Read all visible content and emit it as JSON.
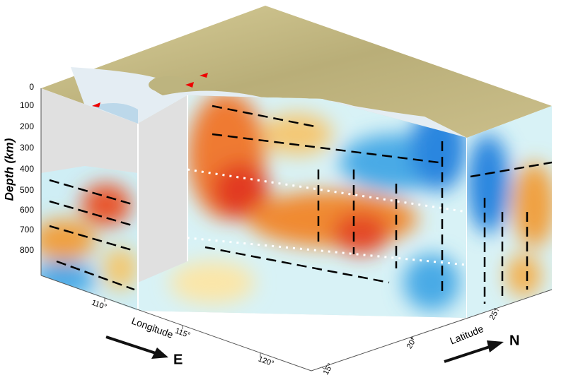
{
  "depth_axis": {
    "label": "Depth (km)",
    "ticks": [
      "0",
      "100",
      "200",
      "300",
      "400",
      "500",
      "600",
      "700",
      "800"
    ]
  },
  "longitude_axis": {
    "label": "Longitude",
    "ticks": [
      "110°",
      "115°",
      "120°"
    ]
  },
  "latitude_axis": {
    "label": "Latitude",
    "ticks": [
      "15°",
      "20°",
      "25°"
    ]
  },
  "arrows": {
    "east": "E",
    "north": "N"
  }
}
